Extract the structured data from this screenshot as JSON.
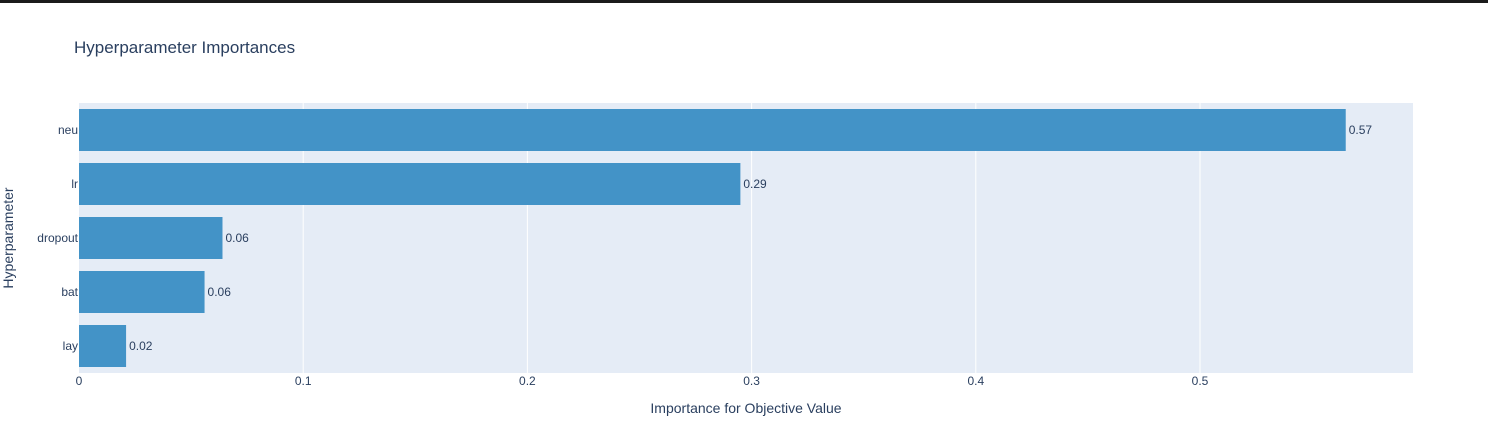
{
  "chart_data": {
    "type": "bar",
    "orientation": "horizontal",
    "title": "Hyperparameter Importances",
    "xlabel": "Importance for Objective Value",
    "ylabel": "Hyperparameter",
    "categories": [
      "neu",
      "lr",
      "dropout",
      "bat",
      "lay"
    ],
    "values": [
      0.565,
      0.295,
      0.064,
      0.056,
      0.021
    ],
    "data_labels": [
      "0.57",
      "0.29",
      "0.06",
      "0.06",
      "0.02"
    ],
    "xlim": [
      0,
      0.595
    ],
    "xticks": [
      0,
      0.1,
      0.2,
      0.3,
      0.4,
      0.5
    ],
    "xtick_labels": [
      "0",
      "0.1",
      "0.2",
      "0.3",
      "0.4",
      "0.5"
    ],
    "grid": true,
    "bar_color": "#4393c7",
    "plot_background": "#e5ecf6",
    "text_color": "#2a3f5f"
  }
}
